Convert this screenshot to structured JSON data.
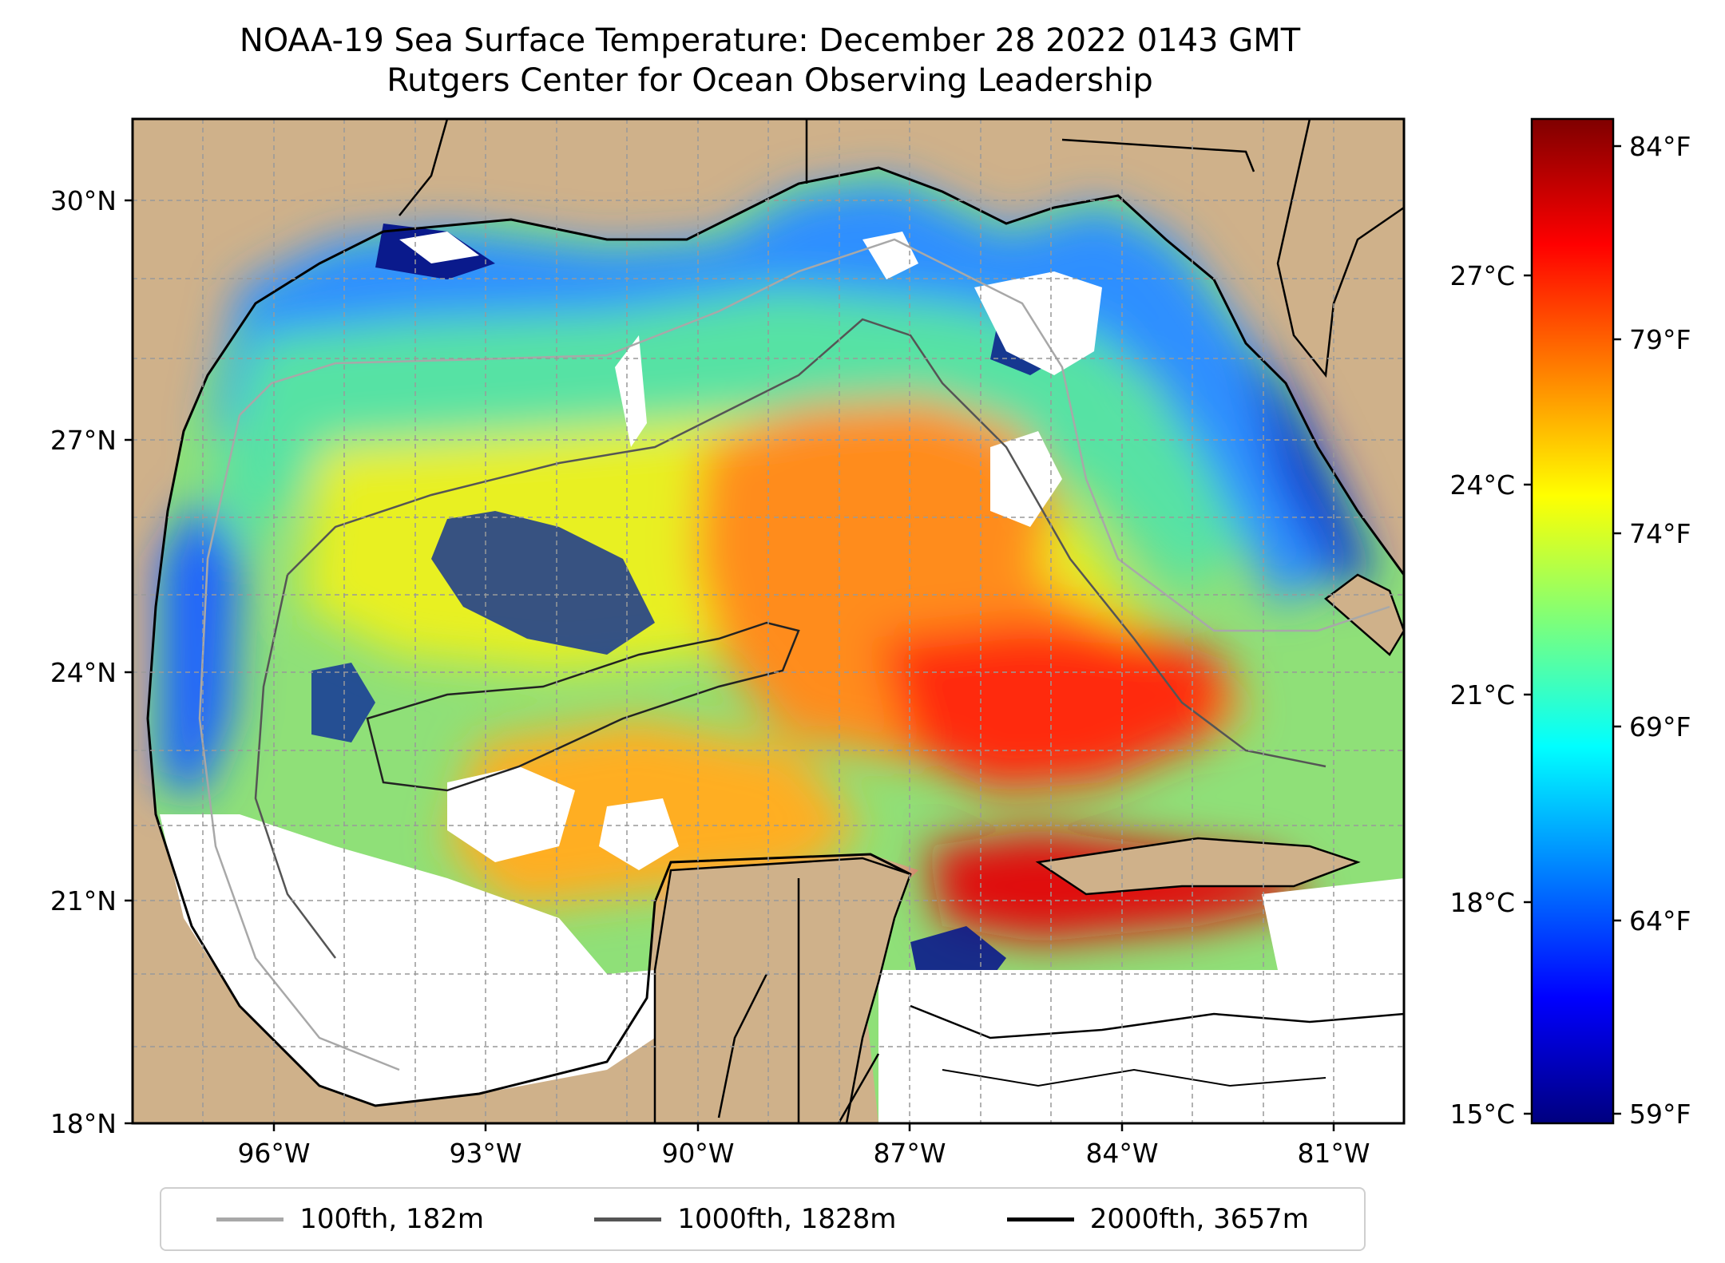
{
  "title": {
    "line1": "NOAA-19 Sea Surface Temperature: December 28 2022 0143 GMT",
    "line2": "Rutgers Center for Ocean Observing Leadership"
  },
  "map": {
    "lat_ticks": [
      "30°N",
      "27°N",
      "24°N",
      "21°N",
      "18°N"
    ],
    "lon_ticks": [
      "96°W",
      "93°W",
      "90°W",
      "87°W",
      "84°W",
      "81°W"
    ],
    "lat_range": [
      18,
      31
    ],
    "lon_range": [
      -98,
      -80
    ],
    "land_color": "#cfb18a",
    "gridlines": true
  },
  "colorbar": {
    "colormap": "jet",
    "celsius_ticks": [
      "27°C",
      "24°C",
      "21°C",
      "18°C",
      "15°C"
    ],
    "fahrenheit_ticks": [
      "84°F",
      "79°F",
      "74°F",
      "69°F",
      "64°F",
      "59°F"
    ],
    "range_celsius": [
      15,
      29.5
    ]
  },
  "legend": {
    "placement": "bottom-center",
    "entries": [
      {
        "label": "100fth, 182m",
        "color": "#a8a8a8"
      },
      {
        "label": "1000fth, 1828m",
        "color": "#555555"
      },
      {
        "label": "2000fth, 3657m",
        "color": "#000000"
      }
    ]
  }
}
